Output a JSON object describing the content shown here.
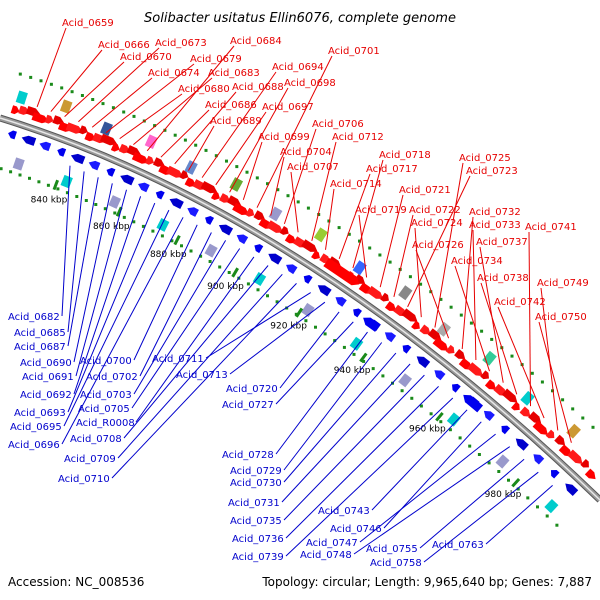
{
  "title": "Solibacter usitatus Ellin6076, complete genome",
  "accession": "Accession: NC_008536",
  "summary": "Topology: circular; Length: 9,965,640 bp; Genes: 7,887",
  "colors": {
    "forward_label": "#e60000",
    "reverse_label": "#0000cc",
    "rna_label": "#33ccff",
    "forward_gene": "#ff0000",
    "reverse_gene": "#0000ee",
    "backbone": "#999999",
    "tick": "#1a8a1a"
  },
  "scale_ticks": [
    "840 kbp",
    "860 kbp",
    "880 kbp",
    "900 kbp",
    "920 kbp",
    "940 kbp",
    "960 kbp",
    "980 kbp"
  ],
  "forward_genes": [
    "Acid_0659",
    "Acid_0666",
    "Acid_0670",
    "Acid_0673",
    "Acid_0674",
    "Acid_0679",
    "Acid_0680",
    "Acid_0683",
    "Acid_0684",
    "Acid_0686",
    "Acid_0688",
    "Acid_0689",
    "Acid_0694",
    "Acid_0697",
    "Acid_0698",
    "Acid_0699",
    "Acid_0701",
    "Acid_0704",
    "Acid_0706",
    "Acid_0707",
    "Acid_0712",
    "Acid_0714",
    "Acid_0717",
    "Acid_0718",
    "Acid_0719",
    "Acid_0721",
    "Acid_0722",
    "Acid_0723",
    "Acid_0724",
    "Acid_0725",
    "Acid_0726",
    "Acid_0732",
    "Acid_0733",
    "Acid_0734",
    "Acid_0737",
    "Acid_0738",
    "Acid_0741",
    "Acid_0742",
    "Acid_0749",
    "Acid_0750"
  ],
  "reverse_genes": [
    "Acid_0682",
    "Acid_0685",
    "Acid_0687",
    "Acid_0690",
    "Acid_0691",
    "Acid_0692",
    "Acid_0693",
    "Acid_0695",
    "Acid_0696",
    "Acid_0700",
    "Acid_0702",
    "Acid_0703",
    "Acid_0705",
    "Acid_R0008",
    "Acid_0708",
    "Acid_0709",
    "Acid_0710",
    "Acid_0711",
    "Acid_0713",
    "Acid_0720",
    "Acid_0727",
    "Acid_0728",
    "Acid_0729",
    "Acid_0730",
    "Acid_0731",
    "Acid_0735",
    "Acid_0736",
    "Acid_0739",
    "Acid_0743",
    "Acid_0746",
    "Acid_0747",
    "Acid_0748",
    "Acid_0755",
    "Acid_0758",
    "Acid_0763"
  ]
}
